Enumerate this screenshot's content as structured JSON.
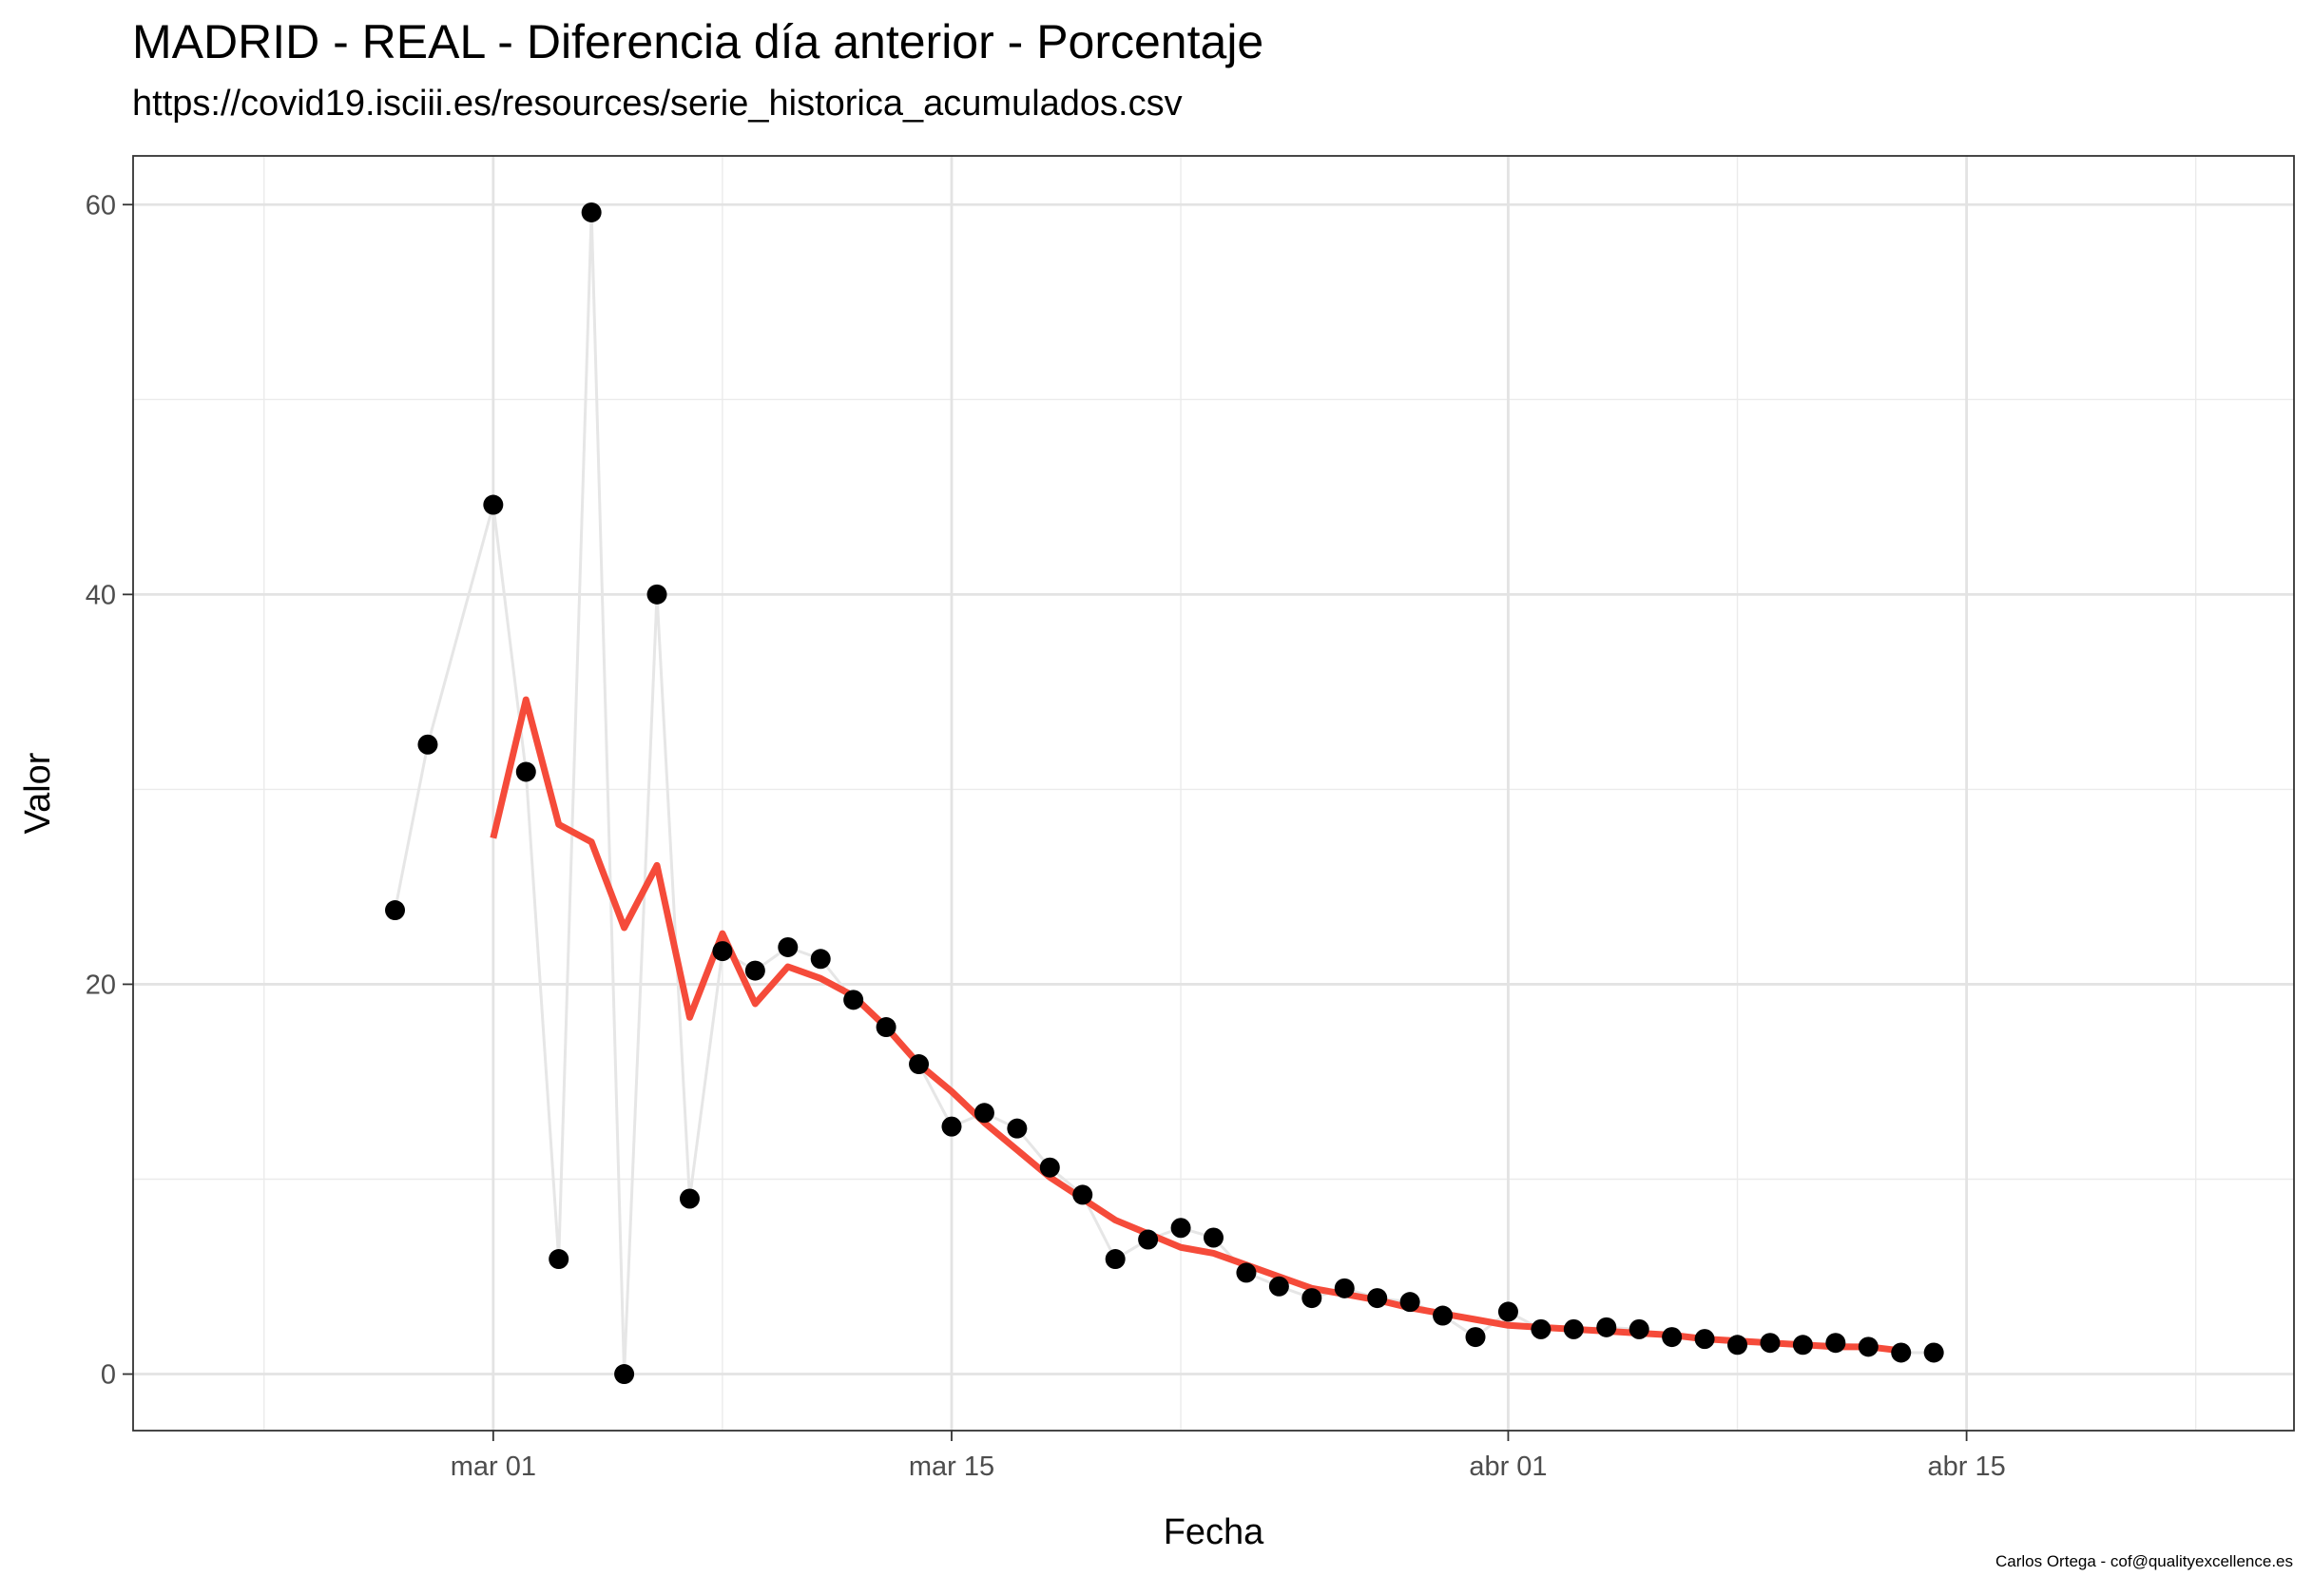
{
  "chart_data": {
    "type": "line",
    "title": "MADRID - REAL - Diferencia día anterior - Porcentaje",
    "subtitle": "https://covid19.isciii.es/resources/serie_historica_acumulados.csv",
    "xlabel": "Fecha",
    "ylabel": "Valor",
    "caption": "Carlos Ortega - cof@qualityexcellence.es",
    "x_axis": {
      "type": "date",
      "range": [
        "2020-02-19",
        "2020-04-25"
      ],
      "ticks": [
        "2020-03-01",
        "2020-03-15",
        "2020-04-01",
        "2020-04-15"
      ],
      "tick_labels": [
        "mar 01",
        "mar 15",
        "abr 01",
        "abr 15"
      ],
      "minor_ticks": [
        "2020-02-23",
        "2020-03-08",
        "2020-03-22",
        "2020-04-08",
        "2020-04-22"
      ]
    },
    "y_axis": {
      "range": [
        -2.9,
        62.5
      ],
      "ticks": [
        0,
        20,
        40,
        60
      ],
      "tick_labels": [
        "0",
        "20",
        "40",
        "60"
      ],
      "minor_ticks": [
        10,
        30,
        50
      ]
    },
    "grid": true,
    "legend": "none",
    "series": [
      {
        "role": "observed",
        "style": "points joined by a light gray line",
        "point_color": "#000000",
        "line_color": "#e6e6e6",
        "x": [
          "2020-02-27",
          "2020-02-28",
          "2020-03-01",
          "2020-03-02",
          "2020-03-03",
          "2020-03-04",
          "2020-03-05",
          "2020-03-06",
          "2020-03-07",
          "2020-03-08",
          "2020-03-09",
          "2020-03-10",
          "2020-03-11",
          "2020-03-12",
          "2020-03-13",
          "2020-03-14",
          "2020-03-15",
          "2020-03-16",
          "2020-03-17",
          "2020-03-18",
          "2020-03-19",
          "2020-03-20",
          "2020-03-21",
          "2020-03-22",
          "2020-03-23",
          "2020-03-24",
          "2020-03-25",
          "2020-03-26",
          "2020-03-27",
          "2020-03-28",
          "2020-03-29",
          "2020-03-30",
          "2020-03-31",
          "2020-04-01",
          "2020-04-02",
          "2020-04-03",
          "2020-04-04",
          "2020-04-05",
          "2020-04-06",
          "2020-04-07",
          "2020-04-08",
          "2020-04-09",
          "2020-04-10",
          "2020-04-11",
          "2020-04-12",
          "2020-04-13",
          "2020-04-14"
        ],
        "values": [
          23.8,
          32.3,
          44.6,
          30.9,
          5.9,
          59.6,
          0.0,
          40.0,
          9.0,
          21.7,
          20.7,
          21.9,
          21.3,
          19.2,
          17.8,
          15.9,
          12.7,
          13.4,
          12.6,
          10.6,
          9.2,
          5.9,
          6.9,
          7.5,
          7.0,
          5.2,
          4.5,
          3.9,
          4.4,
          3.9,
          3.7,
          3.0,
          1.9,
          3.2,
          2.3,
          2.3,
          2.4,
          2.3,
          1.9,
          1.8,
          1.5,
          1.6,
          1.5,
          1.6,
          1.4,
          1.1,
          1.1
        ]
      },
      {
        "role": "smoothed",
        "style": "line",
        "line_color": "#f54b3a",
        "x": [
          "2020-03-01",
          "2020-03-02",
          "2020-03-03",
          "2020-03-04",
          "2020-03-05",
          "2020-03-06",
          "2020-03-07",
          "2020-03-08",
          "2020-03-09",
          "2020-03-10",
          "2020-03-11",
          "2020-03-12",
          "2020-03-13",
          "2020-03-14",
          "2020-03-15",
          "2020-03-16",
          "2020-03-17",
          "2020-03-18",
          "2020-03-19",
          "2020-03-20",
          "2020-03-21",
          "2020-03-22",
          "2020-03-23",
          "2020-03-24",
          "2020-03-25",
          "2020-03-26",
          "2020-03-27",
          "2020-03-28",
          "2020-03-29",
          "2020-03-30",
          "2020-03-31",
          "2020-04-01",
          "2020-04-02",
          "2020-04-03",
          "2020-04-04",
          "2020-04-05",
          "2020-04-06",
          "2020-04-07",
          "2020-04-08",
          "2020-04-09",
          "2020-04-10",
          "2020-04-11",
          "2020-04-12",
          "2020-04-13"
        ],
        "values": [
          27.5,
          34.6,
          28.2,
          27.3,
          22.9,
          26.1,
          18.3,
          22.6,
          19.0,
          20.9,
          20.3,
          19.4,
          17.8,
          15.9,
          14.5,
          12.9,
          11.5,
          10.1,
          9.0,
          7.9,
          7.2,
          6.5,
          6.2,
          5.6,
          5.0,
          4.4,
          4.1,
          3.8,
          3.4,
          3.1,
          2.8,
          2.5,
          2.4,
          2.3,
          2.2,
          2.1,
          2.0,
          1.8,
          1.7,
          1.6,
          1.5,
          1.4,
          1.4,
          1.2
        ]
      }
    ]
  }
}
